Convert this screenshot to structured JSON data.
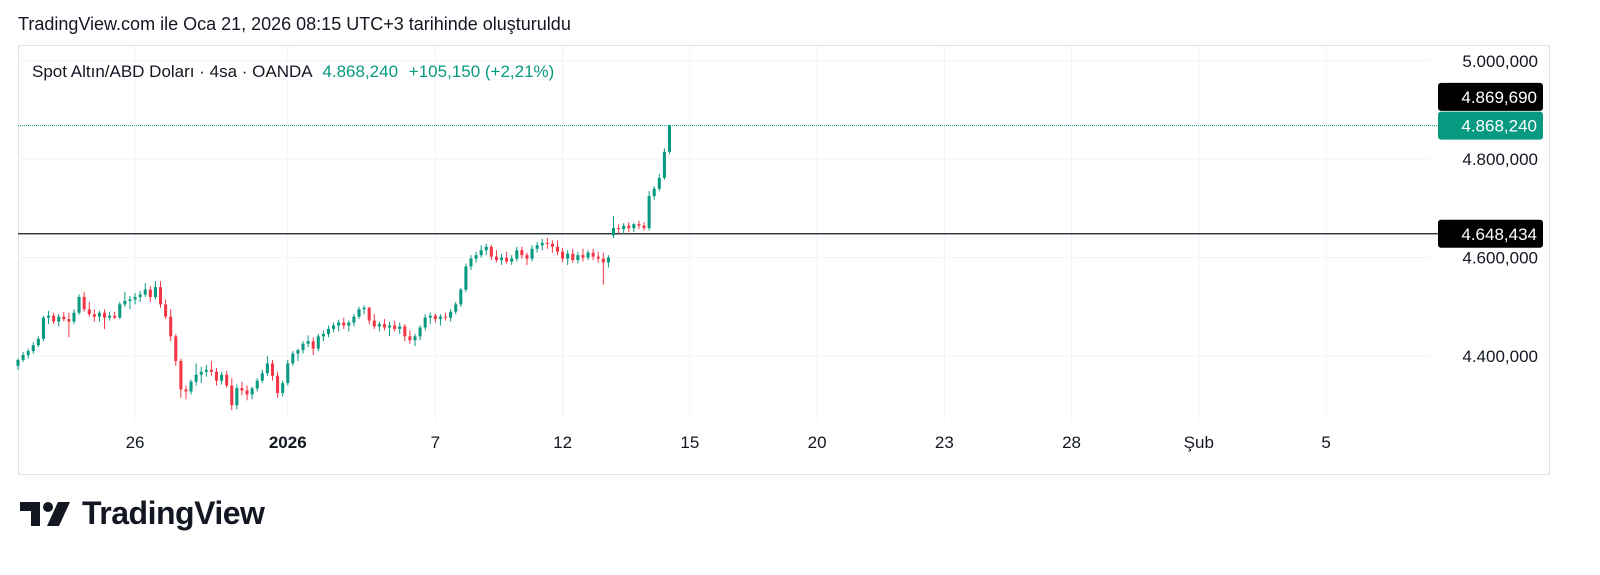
{
  "caption": "TradingView.com ile Oca 21, 2026 08:15 UTC+3 tarihinde oluşturuldu",
  "legend": {
    "symbol": "Spot Altın/ABD Doları · 4sa · OANDA",
    "price": "4.868,240",
    "change": "+105,150 (+2,21%)"
  },
  "brand": {
    "name": "TradingView",
    "logo_icon": "tradingview-logo-icon"
  },
  "colors": {
    "up": "#089981",
    "down": "#f23645",
    "grid": "#f0f3fa",
    "text": "#131722",
    "tag_dark": "#000000"
  },
  "chart_data": {
    "type": "candlestick",
    "title": "Spot Altın/ABD Doları · 4sa · OANDA",
    "ylim": [
      4270,
      5030
    ],
    "y_ticks": [
      {
        "value": 5000,
        "label": "5.000,000"
      },
      {
        "value": 4800,
        "label": "4.800,000"
      },
      {
        "value": 4600,
        "label": "4.600,000"
      },
      {
        "value": 4400,
        "label": "4.400,000"
      }
    ],
    "x_ticks": [
      {
        "index": 23,
        "label": "26",
        "bold": false
      },
      {
        "index": 53,
        "label": "2026",
        "bold": true
      },
      {
        "index": 82,
        "label": "7",
        "bold": false
      },
      {
        "index": 107,
        "label": "12",
        "bold": false
      },
      {
        "index": 132,
        "label": "15",
        "bold": false
      },
      {
        "index": 157,
        "label": "20",
        "bold": false
      },
      {
        "index": 182,
        "label": "23",
        "bold": false
      },
      {
        "index": 207,
        "label": "28",
        "bold": false
      },
      {
        "index": 232,
        "label": "Şub",
        "bold": false
      },
      {
        "index": 257,
        "label": "5",
        "bold": false
      }
    ],
    "x_domain": [
      0,
      301
    ],
    "horizontal_lines": [
      {
        "value": 4869.69,
        "label": "4.869,690",
        "style": "dark"
      },
      {
        "value": 4868.24,
        "label": "4.868,240",
        "style": "current"
      },
      {
        "value": 4648.434,
        "label": "4.648,434",
        "style": "dark"
      }
    ],
    "candles": [
      [
        4380,
        4395,
        4372,
        4392
      ],
      [
        4392,
        4408,
        4388,
        4402
      ],
      [
        4402,
        4415,
        4395,
        4410
      ],
      [
        4410,
        4428,
        4405,
        4422
      ],
      [
        4422,
        4440,
        4418,
        4435
      ],
      [
        4435,
        4482,
        4430,
        4478
      ],
      [
        4478,
        4492,
        4465,
        4482
      ],
      [
        4482,
        4488,
        4465,
        4470
      ],
      [
        4470,
        4485,
        4460,
        4480
      ],
      [
        4480,
        4490,
        4470,
        4475
      ],
      [
        4475,
        4488,
        4438,
        4470
      ],
      [
        4470,
        4495,
        4465,
        4488
      ],
      [
        4488,
        4525,
        4484,
        4520
      ],
      [
        4520,
        4530,
        4490,
        4495
      ],
      [
        4495,
        4510,
        4480,
        4485
      ],
      [
        4485,
        4495,
        4470,
        4480
      ],
      [
        4480,
        4492,
        4470,
        4488
      ],
      [
        4488,
        4495,
        4455,
        4478
      ],
      [
        4478,
        4490,
        4472,
        4482
      ],
      [
        4482,
        4490,
        4475,
        4478
      ],
      [
        4478,
        4510,
        4475,
        4505
      ],
      [
        4505,
        4530,
        4500,
        4512
      ],
      [
        4512,
        4522,
        4495,
        4515
      ],
      [
        4515,
        4528,
        4505,
        4520
      ],
      [
        4520,
        4532,
        4510,
        4525
      ],
      [
        4525,
        4548,
        4520,
        4535
      ],
      [
        4535,
        4542,
        4510,
        4520
      ],
      [
        4520,
        4552,
        4515,
        4540
      ],
      [
        4540,
        4552,
        4498,
        4505
      ],
      [
        4505,
        4515,
        4475,
        4480
      ],
      [
        4480,
        4495,
        4430,
        4440
      ],
      [
        4440,
        4445,
        4380,
        4390
      ],
      [
        4390,
        4395,
        4315,
        4332
      ],
      [
        4332,
        4340,
        4312,
        4328
      ],
      [
        4328,
        4352,
        4322,
        4348
      ],
      [
        4348,
        4385,
        4340,
        4362
      ],
      [
        4362,
        4378,
        4345,
        4368
      ],
      [
        4368,
        4382,
        4358,
        4372
      ],
      [
        4372,
        4390,
        4360,
        4368
      ],
      [
        4368,
        4376,
        4340,
        4350
      ],
      [
        4350,
        4368,
        4342,
        4362
      ],
      [
        4362,
        4370,
        4336,
        4340
      ],
      [
        4340,
        4355,
        4290,
        4300
      ],
      [
        4300,
        4342,
        4292,
        4335
      ],
      [
        4335,
        4348,
        4320,
        4330
      ],
      [
        4330,
        4340,
        4310,
        4322
      ],
      [
        4322,
        4338,
        4312,
        4334
      ],
      [
        4334,
        4355,
        4328,
        4350
      ],
      [
        4350,
        4372,
        4345,
        4365
      ],
      [
        4365,
        4400,
        4360,
        4385
      ],
      [
        4385,
        4392,
        4350,
        4360
      ],
      [
        4360,
        4368,
        4315,
        4325
      ],
      [
        4325,
        4350,
        4318,
        4345
      ],
      [
        4345,
        4392,
        4340,
        4385
      ],
      [
        4385,
        4410,
        4380,
        4405
      ],
      [
        4405,
        4415,
        4390,
        4412
      ],
      [
        4412,
        4430,
        4405,
        4425
      ],
      [
        4425,
        4442,
        4418,
        4430
      ],
      [
        4430,
        4438,
        4402,
        4415
      ],
      [
        4415,
        4445,
        4410,
        4440
      ],
      [
        4440,
        4452,
        4430,
        4445
      ],
      [
        4445,
        4462,
        4438,
        4455
      ],
      [
        4455,
        4468,
        4448,
        4462
      ],
      [
        4462,
        4474,
        4450,
        4468
      ],
      [
        4468,
        4478,
        4455,
        4462
      ],
      [
        4462,
        4472,
        4450,
        4468
      ],
      [
        4468,
        4485,
        4460,
        4480
      ],
      [
        4480,
        4500,
        4475,
        4495
      ],
      [
        4495,
        4503,
        4485,
        4498
      ],
      [
        4498,
        4500,
        4465,
        4472
      ],
      [
        4472,
        4485,
        4455,
        4460
      ],
      [
        4460,
        4470,
        4450,
        4465
      ],
      [
        4465,
        4475,
        4452,
        4458
      ],
      [
        4458,
        4470,
        4440,
        4462
      ],
      [
        4462,
        4472,
        4450,
        4455
      ],
      [
        4455,
        4468,
        4445,
        4460
      ],
      [
        4460,
        4465,
        4430,
        4440
      ],
      [
        4440,
        4452,
        4425,
        4432
      ],
      [
        4432,
        4445,
        4420,
        4440
      ],
      [
        4440,
        4462,
        4432,
        4458
      ],
      [
        4458,
        4485,
        4452,
        4478
      ],
      [
        4478,
        4488,
        4465,
        4482
      ],
      [
        4482,
        4486,
        4468,
        4475
      ],
      [
        4475,
        4485,
        4462,
        4480
      ],
      [
        4480,
        4488,
        4472,
        4478
      ],
      [
        4478,
        4495,
        4470,
        4490
      ],
      [
        4490,
        4510,
        4485,
        4505
      ],
      [
        4505,
        4538,
        4500,
        4535
      ],
      [
        4535,
        4588,
        4530,
        4582
      ],
      [
        4582,
        4605,
        4575,
        4598
      ],
      [
        4598,
        4612,
        4590,
        4605
      ],
      [
        4605,
        4625,
        4600,
        4615
      ],
      [
        4615,
        4628,
        4605,
        4622
      ],
      [
        4622,
        4626,
        4595,
        4602
      ],
      [
        4602,
        4615,
        4590,
        4595
      ],
      [
        4595,
        4608,
        4585,
        4600
      ],
      [
        4600,
        4612,
        4588,
        4592
      ],
      [
        4592,
        4605,
        4585,
        4598
      ],
      [
        4598,
        4622,
        4592,
        4615
      ],
      [
        4615,
        4622,
        4598,
        4605
      ],
      [
        4605,
        4610,
        4585,
        4598
      ],
      [
        4598,
        4625,
        4592,
        4618
      ],
      [
        4618,
        4632,
        4610,
        4625
      ],
      [
        4625,
        4638,
        4615,
        4630
      ],
      [
        4630,
        4640,
        4618,
        4628
      ],
      [
        4628,
        4635,
        4610,
        4622
      ],
      [
        4622,
        4635,
        4605,
        4612
      ],
      [
        4612,
        4620,
        4590,
        4598
      ],
      [
        4598,
        4615,
        4585,
        4608
      ],
      [
        4608,
        4618,
        4590,
        4595
      ],
      [
        4595,
        4612,
        4588,
        4605
      ],
      [
        4605,
        4618,
        4592,
        4600
      ],
      [
        4600,
        4615,
        4595,
        4610
      ],
      [
        4610,
        4618,
        4595,
        4602
      ],
      [
        4602,
        4612,
        4590,
        4598
      ],
      [
        4598,
        4610,
        4545,
        4590
      ],
      [
        4590,
        4605,
        4580,
        4600
      ],
      [
        4645,
        4685,
        4640,
        4660
      ],
      [
        4660,
        4668,
        4650,
        4658
      ],
      [
        4658,
        4670,
        4648,
        4665
      ],
      [
        4665,
        4672,
        4652,
        4660
      ],
      [
        4660,
        4670,
        4652,
        4668
      ],
      [
        4668,
        4675,
        4658,
        4665
      ],
      [
        4665,
        4672,
        4655,
        4660
      ],
      [
        4660,
        4735,
        4655,
        4725
      ],
      [
        4725,
        4745,
        4718,
        4740
      ],
      [
        4740,
        4770,
        4735,
        4762
      ],
      [
        4762,
        4822,
        4758,
        4815
      ],
      [
        4815,
        4870,
        4810,
        4868
      ]
    ]
  }
}
